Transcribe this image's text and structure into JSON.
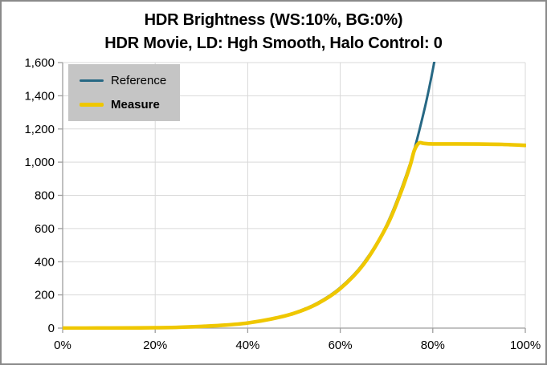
{
  "window": {
    "background": "#ffffff",
    "border_color": "#8a8a8a"
  },
  "chart_data": {
    "type": "line",
    "title": "HDR Brightness (WS:10%, BG:0%)",
    "subtitle": "HDR Movie, LD: Hgh Smooth, Halo Control: 0",
    "xlabel": "",
    "ylabel": "",
    "xlim": [
      0,
      100
    ],
    "ylim": [
      0,
      1600
    ],
    "grid": true,
    "grid_color": "#d9d9d9",
    "axis_color": "#9e9e9e",
    "tick_label_color": "#000000",
    "legend_position": "top-left-inside",
    "legend_background": "#c5c5c5",
    "x_ticks": {
      "values": [
        0,
        20,
        40,
        60,
        80,
        100
      ],
      "labels": [
        "0%",
        "20%",
        "40%",
        "60%",
        "80%",
        "100%"
      ]
    },
    "y_ticks": {
      "values": [
        0,
        200,
        400,
        600,
        800,
        1000,
        1200,
        1400,
        1600
      ],
      "labels": [
        "0",
        "200",
        "400",
        "600",
        "800",
        "1,000",
        "1,200",
        "1,400",
        "1,600"
      ]
    },
    "series": [
      {
        "name": "Reference",
        "color": "#276884",
        "stroke_width": 3,
        "x": [
          0,
          5,
          10,
          15,
          20,
          25,
          30,
          35,
          40,
          45,
          50,
          55,
          60,
          65,
          70,
          75,
          78,
          80,
          82,
          84
        ],
        "y": [
          0,
          0.1,
          0.3,
          1,
          2.4,
          5,
          10,
          19,
          33,
          56,
          92,
          151,
          244,
          390,
          620,
          983,
          1295,
          1556,
          1868,
          2230
        ]
      },
      {
        "name": "Measure",
        "color": "#efc700",
        "stroke_width": 4.6,
        "x": [
          0,
          5,
          10,
          15,
          20,
          25,
          30,
          35,
          40,
          45,
          50,
          55,
          60,
          65,
          70,
          73,
          75,
          76,
          77,
          78,
          80,
          85,
          90,
          95,
          100
        ],
        "y": [
          0,
          0.1,
          0.3,
          1,
          2.3,
          5,
          10,
          18,
          31,
          54,
          89,
          146,
          238,
          383,
          612,
          810,
          970,
          1070,
          1115,
          1113,
          1110,
          1110,
          1109,
          1107,
          1101
        ]
      }
    ]
  }
}
